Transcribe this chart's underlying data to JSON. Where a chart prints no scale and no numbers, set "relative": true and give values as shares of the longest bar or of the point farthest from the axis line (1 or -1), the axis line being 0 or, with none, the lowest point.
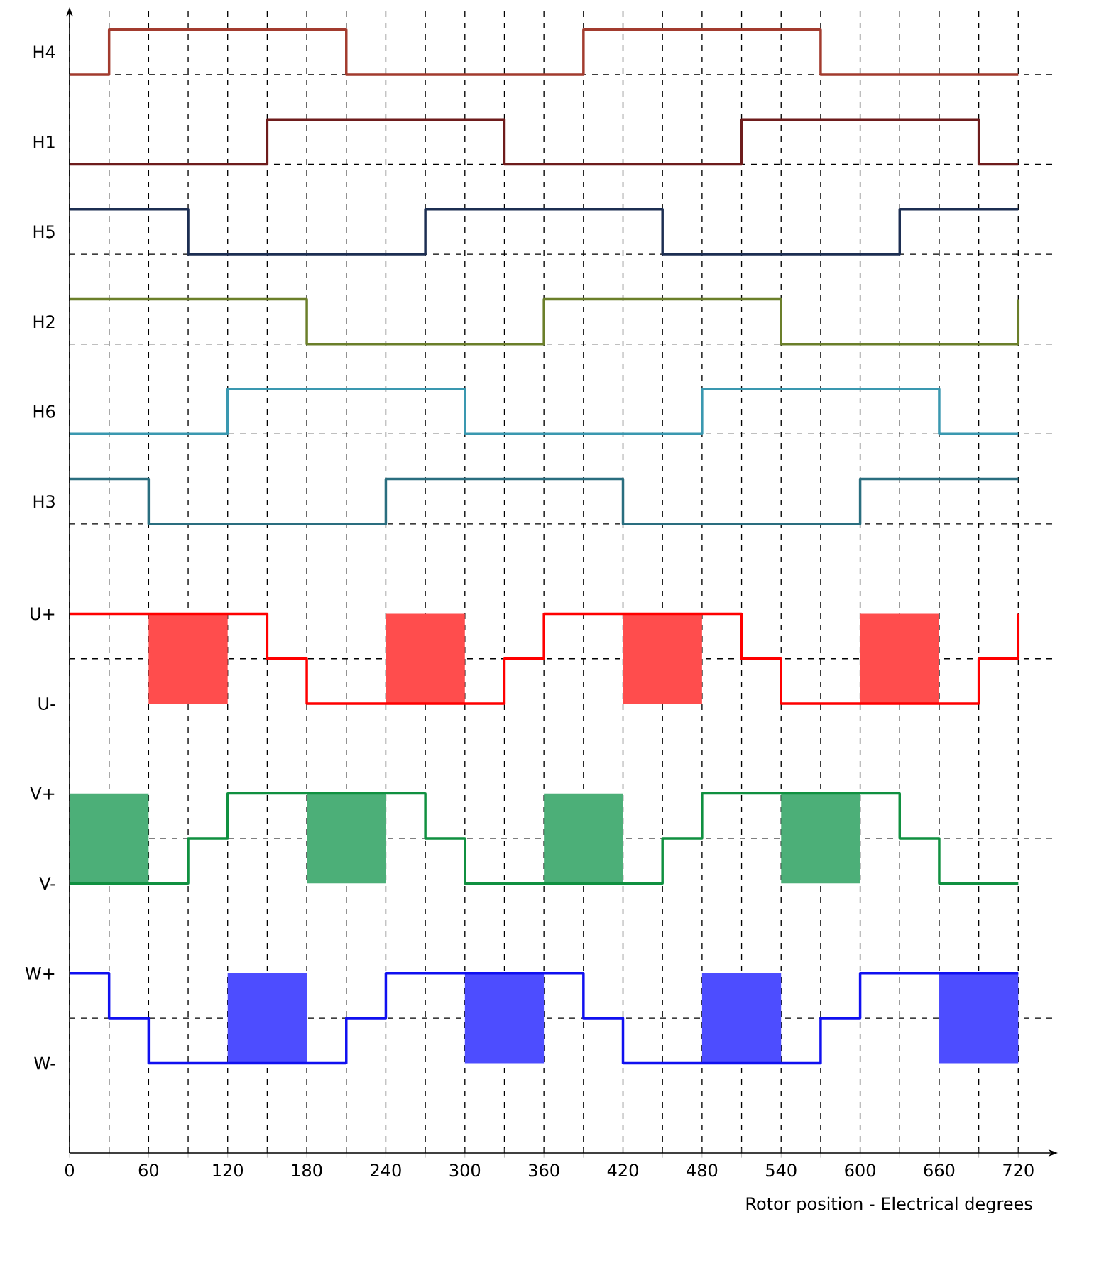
{
  "chart_data": {
    "type": "step",
    "relative": true,
    "tick_labels": "x",
    "xlabel": "Rotor position - Electrical degrees",
    "xlim": [
      0,
      750
    ],
    "xticks": [
      0,
      {
        "value": 30,
        "label": null
      },
      60,
      {
        "value": 90,
        "label": null
      },
      120,
      {
        "value": 150,
        "label": null
      },
      180,
      {
        "value": 210,
        "label": null
      },
      240,
      {
        "value": 270,
        "label": null
      },
      300,
      {
        "value": 330,
        "label": null
      },
      360,
      {
        "value": 390,
        "label": null
      },
      420,
      {
        "value": 450,
        "label": null
      },
      480,
      {
        "value": 510,
        "label": null
      },
      540,
      {
        "value": 570,
        "label": null
      },
      600,
      {
        "value": 630,
        "label": null
      },
      660,
      {
        "value": 690,
        "label": null
      },
      720
    ],
    "annotations": [
      "U+",
      "U-",
      "V+",
      "V-",
      "W+",
      "W-"
    ],
    "grid": "x",
    "marker": "none",
    "line_style": "solid",
    "ref_lines": [
      {
        "axis": "y",
        "value": 0.12,
        "color": "#000000",
        "line_style": "dashed"
      },
      {
        "axis": "y",
        "value": 0.28,
        "color": "#000000",
        "line_style": "dashed"
      },
      {
        "axis": "y",
        "value": 0.44,
        "color": "#000000",
        "line_style": "dashed"
      },
      {
        "axis": "y",
        "value": 0.56,
        "color": "#000000",
        "line_style": "dashed"
      },
      {
        "axis": "y",
        "value": 0.64,
        "color": "#000000",
        "line_style": "dashed"
      },
      {
        "axis": "y",
        "value": 0.72,
        "color": "#000000",
        "line_style": "dashed"
      },
      {
        "axis": "y",
        "value": 0.8,
        "color": "#000000",
        "line_style": "dashed"
      },
      {
        "axis": "y",
        "value": 0.88,
        "color": "#000000",
        "line_style": "dashed"
      },
      {
        "axis": "y",
        "value": 0.96,
        "color": "#000000",
        "line_style": "dashed"
      }
    ],
    "bands": [
      {
        "axis": "x",
        "from": 60,
        "to": 120,
        "color": "#ff4d4d"
      },
      {
        "axis": "x",
        "from": 240,
        "to": 300,
        "color": "#ff4d4d"
      },
      {
        "axis": "x",
        "from": 420,
        "to": 480,
        "color": "#ff4d4d"
      },
      {
        "axis": "x",
        "from": 600,
        "to": 660,
        "color": "#ff4d4d"
      },
      {
        "axis": "x",
        "from": 0,
        "to": 60,
        "color": "#4caf78"
      },
      {
        "axis": "x",
        "from": 180,
        "to": 240,
        "color": "#4caf78"
      },
      {
        "axis": "x",
        "from": 360,
        "to": 420,
        "color": "#4caf78"
      },
      {
        "axis": "x",
        "from": 540,
        "to": 600,
        "color": "#4caf78"
      },
      {
        "axis": "x",
        "from": 120,
        "to": 180,
        "color": "#4d4dff"
      },
      {
        "axis": "x",
        "from": 300,
        "to": 360,
        "color": "#4d4dff"
      },
      {
        "axis": "x",
        "from": 480,
        "to": 540,
        "color": "#4d4dff"
      },
      {
        "axis": "x",
        "from": 660,
        "to": 720,
        "color": "#4d4dff"
      }
    ],
    "series": [
      {
        "name": "H4",
        "color": "#a23b2e",
        "x": [
          0,
          30,
          210,
          390,
          570,
          720
        ],
        "values": [
          0.96,
          1,
          0.96,
          1,
          0.96,
          0.96
        ]
      },
      {
        "name": "H1",
        "color": "#6e1c1c",
        "x": [
          0,
          150,
          330,
          510,
          690,
          720
        ],
        "values": [
          0.88,
          0.92,
          0.88,
          0.92,
          0.88,
          0.88
        ]
      },
      {
        "name": "H5",
        "color": "#1c2e52",
        "x": [
          0,
          90,
          270,
          450,
          630,
          720
        ],
        "values": [
          0.84,
          0.8,
          0.84,
          0.8,
          0.84,
          0.84
        ]
      },
      {
        "name": "H2",
        "color": "#6b7f2a",
        "x": [
          0,
          180,
          360,
          540,
          720
        ],
        "values": [
          0.76,
          0.72,
          0.76,
          0.72,
          0.76
        ]
      },
      {
        "name": "H6",
        "color": "#3a98b0",
        "x": [
          0,
          120,
          300,
          480,
          660,
          720
        ],
        "values": [
          0.64,
          0.68,
          0.64,
          0.68,
          0.64,
          0.64
        ]
      },
      {
        "name": "H3",
        "color": "#2a6e7f",
        "x": [
          0,
          60,
          240,
          420,
          600,
          720
        ],
        "values": [
          0.6,
          0.56,
          0.6,
          0.56,
          0.6,
          0.6
        ]
      },
      {
        "color": "#ff0000",
        "x": [
          0,
          150,
          180,
          330,
          360,
          510,
          540,
          690,
          720
        ],
        "values": [
          0.48,
          0.44,
          0.4,
          0.44,
          0.48,
          0.44,
          0.4,
          0.44,
          0.48
        ]
      },
      {
        "color": "#109040",
        "x": [
          0,
          90,
          120,
          270,
          300,
          450,
          480,
          630,
          660,
          720
        ],
        "values": [
          0.24,
          0.28,
          0.32,
          0.28,
          0.24,
          0.28,
          0.32,
          0.28,
          0.24,
          0.24
        ]
      },
      {
        "color": "#1010f0",
        "x": [
          0,
          30,
          60,
          210,
          240,
          390,
          420,
          570,
          600,
          720
        ],
        "values": [
          0.16,
          0.12,
          0.08,
          0.12,
          0.16,
          0.12,
          0.08,
          0.12,
          0.16,
          0.16
        ]
      }
    ]
  }
}
